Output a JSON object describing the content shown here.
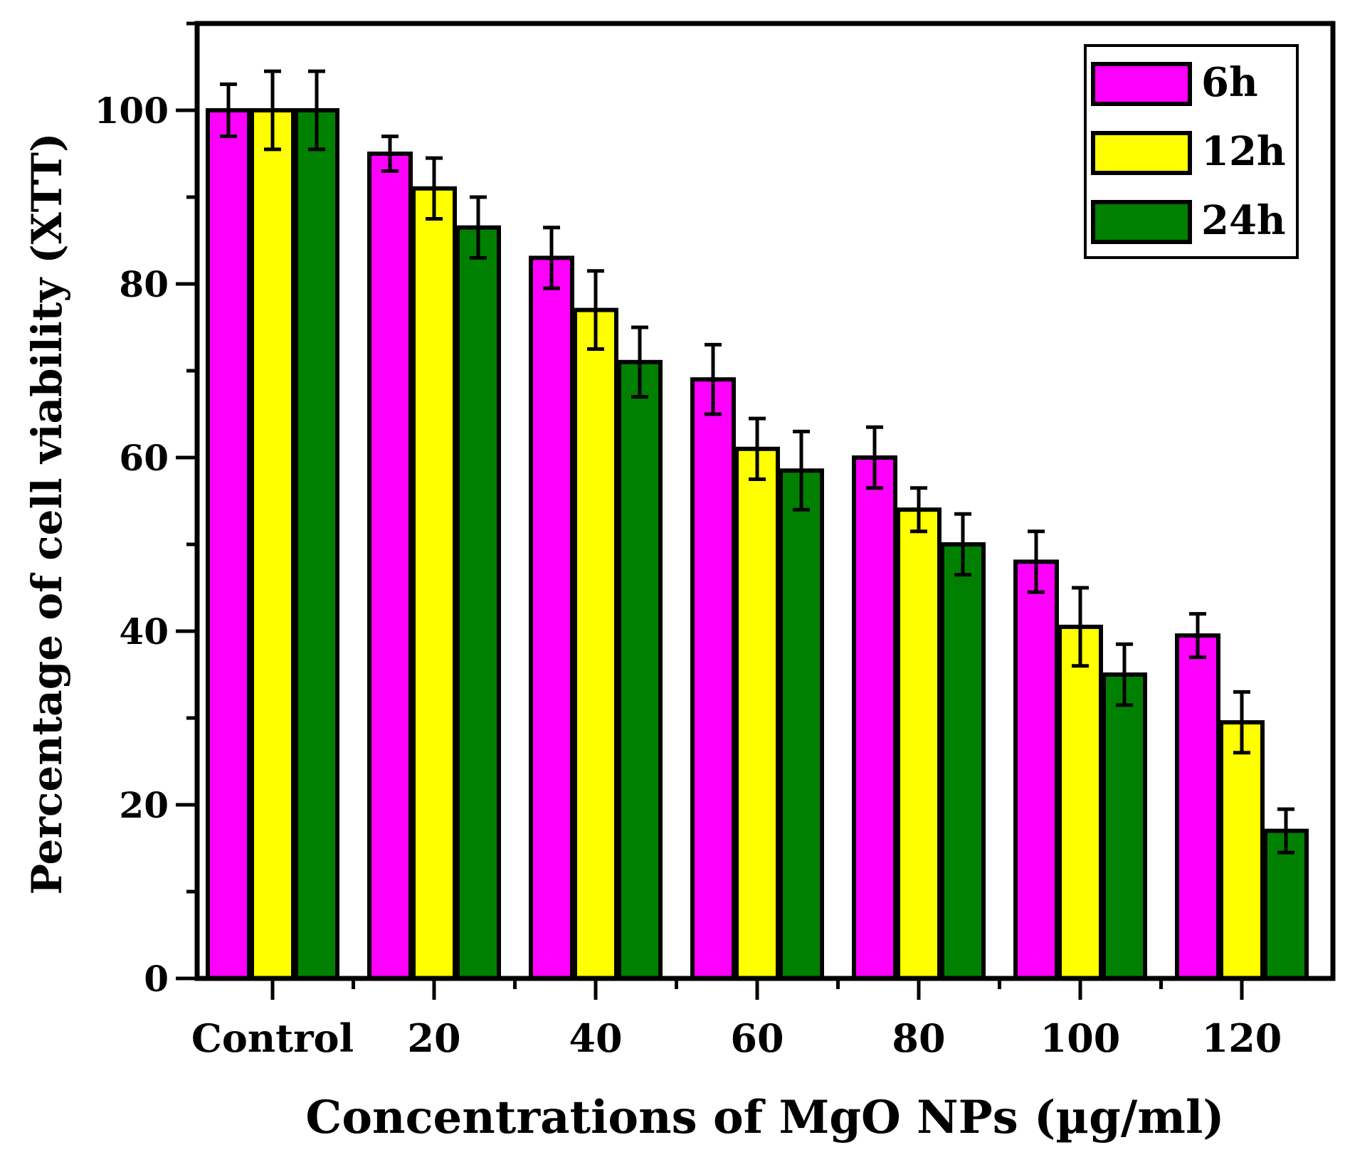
{
  "chart_data": {
    "type": "bar",
    "title": "",
    "xlabel": "Concentrations  of MgO NPs (µg/ml)",
    "ylabel": "Percentage of cell viability (XTT)",
    "categories": [
      "Control",
      "20",
      "40",
      "60",
      "80",
      "100",
      "120"
    ],
    "ylim": [
      0,
      110
    ],
    "yticks": [
      0,
      20,
      40,
      60,
      80,
      100
    ],
    "ytick_labels": [
      "0",
      "20",
      "40",
      "60",
      "80",
      "100"
    ],
    "grid": false,
    "legend_position": "top-right",
    "series": [
      {
        "name": "6h",
        "color": "#ff00ff",
        "values": [
          100,
          95,
          83,
          69,
          60,
          48,
          39.5
        ],
        "errors": [
          3,
          2,
          3.5,
          4,
          3.5,
          3.5,
          2.5
        ]
      },
      {
        "name": "12h",
        "color": "#ffff00",
        "values": [
          100,
          91,
          77,
          61,
          54,
          40.5,
          29.5
        ],
        "errors": [
          4.5,
          3.5,
          4.5,
          3.5,
          2.5,
          4.5,
          3.5
        ]
      },
      {
        "name": "24h",
        "color": "#008000",
        "values": [
          100,
          86.5,
          71,
          58.5,
          50,
          35,
          17
        ],
        "errors": [
          4.5,
          3.5,
          4,
          4.5,
          3.5,
          3.5,
          2.5
        ]
      }
    ]
  }
}
